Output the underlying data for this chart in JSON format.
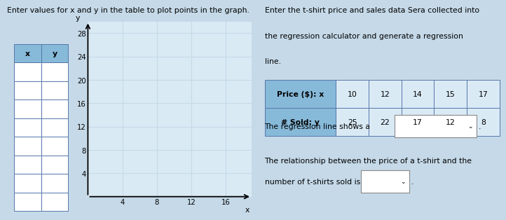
{
  "background_color": "#c5d9e8",
  "graph_bg": "#daeaf5",
  "left_title": "Enter values for x and y in the table to plot points in the graph.",
  "table_header": [
    "x",
    "y"
  ],
  "num_data_rows": 8,
  "graph": {
    "x_ticks": [
      4,
      8,
      12,
      16
    ],
    "y_ticks": [
      4,
      8,
      12,
      16,
      20,
      24,
      28
    ],
    "x_label": "x",
    "y_label": "y"
  },
  "right": {
    "line1": "Enter the t-shirt price and sales data Sera collected into",
    "line2": "the regression calculator and generate a regression",
    "line3": "line.",
    "tbl_header": [
      "Price ($): x",
      "# Sold: y"
    ],
    "tbl_data": [
      [
        10,
        12,
        14,
        15,
        17
      ],
      [
        25,
        22,
        17,
        12,
        8
      ]
    ],
    "tbl_header_color": "#87b9d9",
    "tbl_cell_color": "#daeaf5",
    "tbl_border": "#5577aa",
    "regression_text": "The regression line shows a",
    "rel_line1": "The relationship between the price of a t-shirt and the",
    "rel_line2": "number of t-shirts sold is"
  },
  "header_color": "#87b9d9",
  "cell_color": "#daeaf5",
  "border_color": "#5577aa",
  "fs": 7.8
}
